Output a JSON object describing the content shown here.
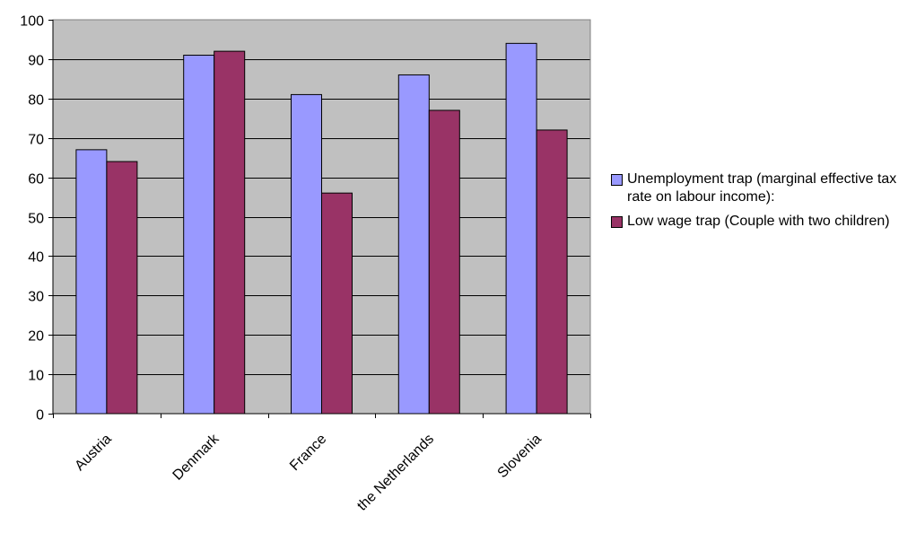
{
  "chart_data": {
    "type": "bar",
    "categories": [
      "Austria",
      "Denmark",
      "France",
      "the Netherlands",
      "Slovenia"
    ],
    "series": [
      {
        "name": "Unemployment trap (marginal effective tax rate on labour income):",
        "values": [
          67,
          91,
          81,
          86,
          94
        ],
        "color": "#9999ff"
      },
      {
        "name": "Low wage trap (Couple with two children)",
        "values": [
          64,
          92,
          56,
          77,
          72
        ],
        "color": "#993366"
      }
    ],
    "ylim": [
      0,
      100
    ],
    "yticks": [
      0,
      10,
      20,
      30,
      40,
      50,
      60,
      70,
      80,
      90,
      100
    ],
    "grid": true,
    "plot_background": "#c0c0c0",
    "legend_position": "right"
  }
}
